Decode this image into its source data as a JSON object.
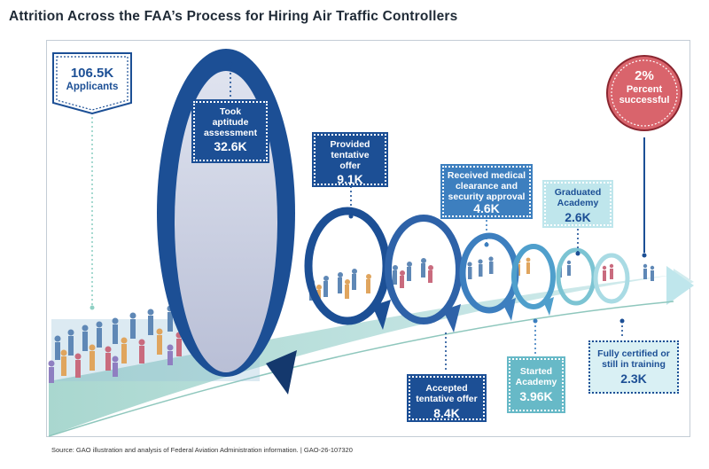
{
  "title": "Attrition Across the FAA’s Process for Hiring Air Traffic Controllers",
  "source": "Source: GAO illustration and analysis of Federal Aviation Administration information.  |  GAO-26-107320",
  "steps": [
    {
      "label": "Applicants",
      "value": "106.5K"
    },
    {
      "label": "Took\naptitude\nassessment",
      "value": "32.6K"
    },
    {
      "label": "Provided\ntentative\noffer",
      "value": "9.1K"
    },
    {
      "label": "Accepted\ntentative offer",
      "value": "8.4K"
    },
    {
      "label": "Received medical\nclearance and\nsecurity approval",
      "value": "4.6K"
    },
    {
      "label": "Started\nAcademy",
      "value": "3.96K"
    },
    {
      "label": "Graduated\nAcademy",
      "value": "2.6K"
    },
    {
      "label": "Fully certified or\nstill in training",
      "value": "2.3K"
    }
  ],
  "success": {
    "value": "2%",
    "label": "Percent\nsuccessful"
  },
  "colors": {
    "dark_blue": "#1c4f95",
    "mid_blue": "#3d7fbf",
    "teal": "#67b9c7",
    "pale_teal": "#bfe6ec",
    "success_red": "#d9646c",
    "title": "#1f2a36"
  }
}
